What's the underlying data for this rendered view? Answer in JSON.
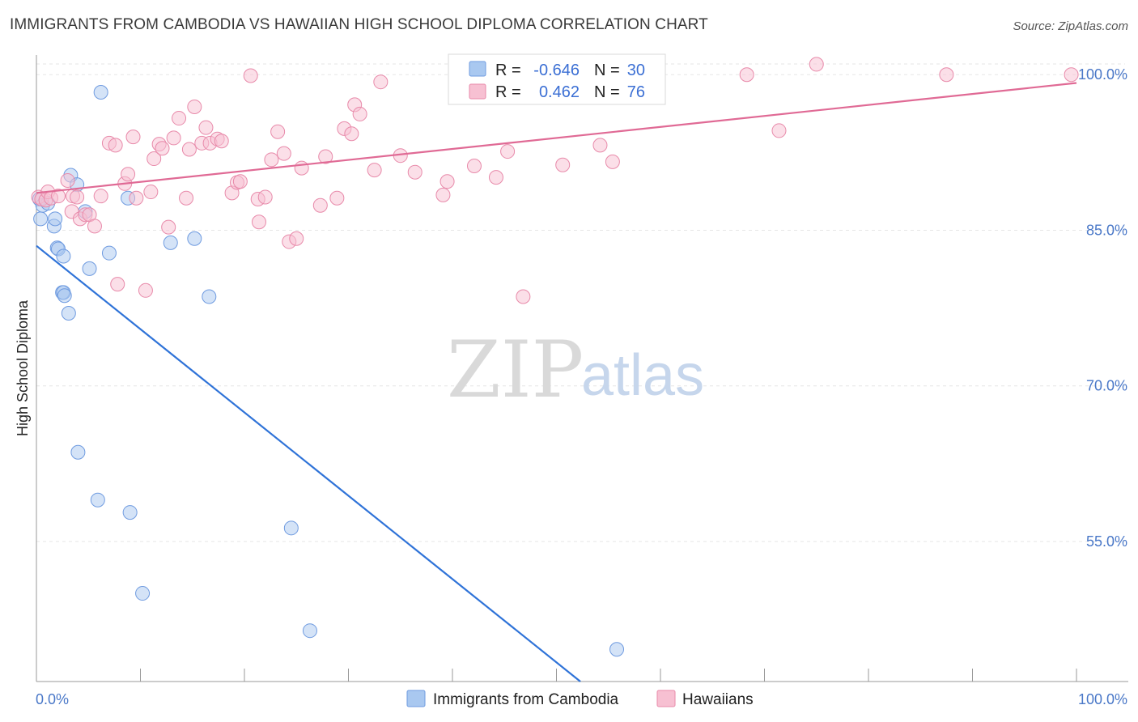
{
  "title": "IMMIGRANTS FROM CAMBODIA VS HAWAIIAN HIGH SCHOOL DIPLOMA CORRELATION CHART",
  "source": "Source: ZipAtlas.com",
  "watermark": {
    "zip": "ZIP",
    "atlas": "atlas"
  },
  "legend": {
    "r_label": "R =",
    "n_label": "N =",
    "rows": [
      {
        "r": "-0.646",
        "n": "30",
        "color": "#a9c8f0",
        "stroke": "#6f9be0"
      },
      {
        "r": "0.462",
        "n": "76",
        "color": "#f7c0d2",
        "stroke": "#e88aaa"
      }
    ]
  },
  "chart_data": {
    "type": "scatter",
    "title": "IMMIGRANTS FROM CAMBODIA VS HAWAIIAN HIGH SCHOOL DIPLOMA CORRELATION CHART",
    "xlabel": "",
    "ylabel": "High School Diploma",
    "xlim": [
      0,
      100
    ],
    "ylim": [
      41.5,
      101.5
    ],
    "x_tick_labels": [
      "0.0%",
      "100.0%"
    ],
    "y_ticks": [
      55,
      70,
      85,
      100
    ],
    "y_tick_labels": [
      "55.0%",
      "70.0%",
      "85.0%",
      "100.0%"
    ],
    "grid": true,
    "legend_position": "bottom",
    "series": [
      {
        "name": "Immigrants from Cambodia",
        "color": "#a9c8f0",
        "stroke": "#6f9be0",
        "line_color": "#2f73d8",
        "trend": [
          [
            0,
            83.5
          ],
          [
            52.3,
            41.5
          ]
        ],
        "points": [
          [
            0.3,
            88.0
          ],
          [
            0.4,
            86.1
          ],
          [
            0.6,
            87.4
          ],
          [
            1.1,
            87.6
          ],
          [
            1.7,
            85.4
          ],
          [
            1.8,
            86.1
          ],
          [
            2.0,
            83.3
          ],
          [
            2.1,
            83.2
          ],
          [
            2.5,
            79.0
          ],
          [
            2.6,
            79.0
          ],
          [
            2.6,
            82.5
          ],
          [
            2.7,
            78.7
          ],
          [
            3.1,
            77.0
          ],
          [
            3.3,
            90.3
          ],
          [
            3.9,
            89.4
          ],
          [
            4.0,
            63.6
          ],
          [
            4.7,
            86.8
          ],
          [
            5.1,
            81.3
          ],
          [
            5.9,
            59.0
          ],
          [
            6.2,
            98.3
          ],
          [
            7.0,
            82.8
          ],
          [
            8.8,
            88.1
          ],
          [
            9.0,
            57.8
          ],
          [
            10.2,
            50.0
          ],
          [
            12.9,
            83.8
          ],
          [
            15.2,
            84.2
          ],
          [
            16.6,
            78.6
          ],
          [
            24.5,
            56.3
          ],
          [
            26.3,
            46.4
          ],
          [
            55.8,
            44.6
          ]
        ]
      },
      {
        "name": "Hawaiians",
        "color": "#f7c0d2",
        "stroke": "#e88aaa",
        "line_color": "#e06a95",
        "trend": [
          [
            0,
            88.6
          ],
          [
            100,
            99.2
          ]
        ],
        "points": [
          [
            0.2,
            88.2
          ],
          [
            0.5,
            88.0
          ],
          [
            0.9,
            87.9
          ],
          [
            1.1,
            88.7
          ],
          [
            1.4,
            88.1
          ],
          [
            2.1,
            88.3
          ],
          [
            3.0,
            89.8
          ],
          [
            3.4,
            86.8
          ],
          [
            3.5,
            88.3
          ],
          [
            3.9,
            88.2
          ],
          [
            4.2,
            86.1
          ],
          [
            4.7,
            86.5
          ],
          [
            5.1,
            86.5
          ],
          [
            5.6,
            85.4
          ],
          [
            6.2,
            88.3
          ],
          [
            7.0,
            93.4
          ],
          [
            7.6,
            93.2
          ],
          [
            7.8,
            79.8
          ],
          [
            8.5,
            89.5
          ],
          [
            8.8,
            90.4
          ],
          [
            9.3,
            94.0
          ],
          [
            9.6,
            88.1
          ],
          [
            10.5,
            79.2
          ],
          [
            11.0,
            88.7
          ],
          [
            11.3,
            91.9
          ],
          [
            11.8,
            93.3
          ],
          [
            12.1,
            92.9
          ],
          [
            12.7,
            85.3
          ],
          [
            13.2,
            93.9
          ],
          [
            13.7,
            95.8
          ],
          [
            14.4,
            88.1
          ],
          [
            14.7,
            92.8
          ],
          [
            15.2,
            96.9
          ],
          [
            15.9,
            93.4
          ],
          [
            16.3,
            94.9
          ],
          [
            16.7,
            93.4
          ],
          [
            17.4,
            93.8
          ],
          [
            17.8,
            93.6
          ],
          [
            18.8,
            88.6
          ],
          [
            19.3,
            89.6
          ],
          [
            19.6,
            89.7
          ],
          [
            20.6,
            99.9
          ],
          [
            21.3,
            88.0
          ],
          [
            21.4,
            85.8
          ],
          [
            22.0,
            88.2
          ],
          [
            22.6,
            91.8
          ],
          [
            23.2,
            94.5
          ],
          [
            23.8,
            92.4
          ],
          [
            24.3,
            83.9
          ],
          [
            25.0,
            84.2
          ],
          [
            25.5,
            91.0
          ],
          [
            27.3,
            87.4
          ],
          [
            27.8,
            92.1
          ],
          [
            28.9,
            88.1
          ],
          [
            29.6,
            94.8
          ],
          [
            30.3,
            94.3
          ],
          [
            30.6,
            97.1
          ],
          [
            31.1,
            96.2
          ],
          [
            32.5,
            90.8
          ],
          [
            33.1,
            99.3
          ],
          [
            35.0,
            92.2
          ],
          [
            36.4,
            90.6
          ],
          [
            39.1,
            88.4
          ],
          [
            39.5,
            89.7
          ],
          [
            42.1,
            91.2
          ],
          [
            44.2,
            90.1
          ],
          [
            45.3,
            92.6
          ],
          [
            46.8,
            78.6
          ],
          [
            50.6,
            91.3
          ],
          [
            54.2,
            93.2
          ],
          [
            55.4,
            91.6
          ],
          [
            68.3,
            100.0
          ],
          [
            71.4,
            94.6
          ],
          [
            87.5,
            100.0
          ],
          [
            99.5,
            100.0
          ],
          [
            75.0,
            101.0
          ]
        ]
      }
    ]
  }
}
